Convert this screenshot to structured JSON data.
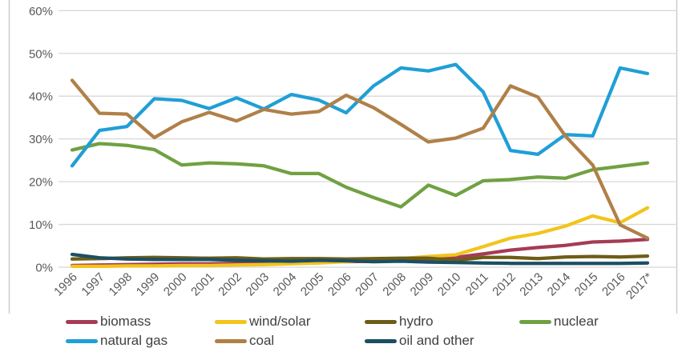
{
  "chart_data": {
    "type": "line",
    "title": "",
    "xlabel": "",
    "ylabel": "",
    "grid": true,
    "legend_position": "bottom",
    "x_categories": [
      "1996",
      "1997",
      "1998",
      "1999",
      "2000",
      "2001",
      "2002",
      "2003",
      "2004",
      "2005",
      "2006",
      "2007",
      "2008",
      "2009",
      "2010",
      "2011",
      "2012",
      "2013",
      "2014",
      "2015",
      "2016",
      "2017*"
    ],
    "y_axis": {
      "min": 0,
      "max": 60,
      "unit": "%",
      "ticks": [
        {
          "value": 0,
          "label": "0%"
        },
        {
          "value": 10,
          "label": "10%"
        },
        {
          "value": 20,
          "label": "20%"
        },
        {
          "value": 30,
          "label": "30%"
        },
        {
          "value": 40,
          "label": "40%"
        },
        {
          "value": 50,
          "label": "50%"
        },
        {
          "value": 60,
          "label": "60%"
        }
      ]
    },
    "series": [
      {
        "id": "biomass",
        "name": "biomass",
        "color": "#a53b55",
        "values": [
          0.4,
          0.5,
          0.6,
          0.7,
          0.8,
          0.8,
          0.9,
          1.0,
          1.1,
          1.2,
          1.3,
          1.4,
          1.6,
          1.8,
          2.3,
          3.1,
          4.0,
          4.6,
          5.1,
          5.9,
          6.1,
          6.5
        ]
      },
      {
        "id": "wind-solar",
        "name": "wind/solar",
        "color": "#f2c41d",
        "values": [
          0.2,
          0.2,
          0.3,
          0.3,
          0.4,
          0.4,
          0.5,
          0.6,
          0.8,
          1.0,
          1.3,
          1.6,
          2.0,
          2.5,
          2.9,
          4.8,
          6.8,
          7.9,
          9.6,
          12.0,
          10.4,
          13.9
        ]
      },
      {
        "id": "hydro",
        "name": "hydro",
        "color": "#6d5e17",
        "values": [
          1.9,
          2.0,
          2.2,
          2.3,
          2.2,
          2.1,
          2.2,
          1.9,
          2.0,
          2.0,
          1.9,
          2.0,
          2.1,
          2.1,
          1.6,
          2.3,
          2.3,
          2.0,
          2.4,
          2.5,
          2.4,
          2.6
        ]
      },
      {
        "id": "nuclear",
        "name": "nuclear",
        "color": "#70a142",
        "values": [
          27.4,
          28.9,
          28.5,
          27.5,
          23.9,
          24.4,
          24.2,
          23.7,
          21.9,
          21.9,
          18.7,
          16.3,
          14.1,
          19.2,
          16.8,
          20.2,
          20.5,
          21.1,
          20.8,
          22.8,
          23.6,
          24.4
        ]
      },
      {
        "id": "natural-gas",
        "name": "natural gas",
        "color": "#209fd6",
        "values": [
          23.7,
          32.0,
          32.9,
          39.4,
          39.0,
          37.1,
          39.6,
          37.0,
          40.4,
          39.1,
          36.1,
          42.4,
          46.6,
          45.9,
          47.4,
          41.0,
          27.3,
          26.4,
          31.0,
          30.7,
          46.6,
          45.3
        ]
      },
      {
        "id": "coal",
        "name": "coal",
        "color": "#b08048",
        "values": [
          43.7,
          36.0,
          35.8,
          30.3,
          34.0,
          36.2,
          34.2,
          36.9,
          35.8,
          36.4,
          40.2,
          37.3,
          33.4,
          29.3,
          30.2,
          32.5,
          42.4,
          39.8,
          30.7,
          23.9,
          9.9,
          6.8
        ]
      },
      {
        "id": "oil-other",
        "name": "oil and other",
        "color": "#1c4f63",
        "values": [
          3.0,
          2.2,
          1.9,
          1.8,
          1.8,
          1.8,
          1.6,
          1.5,
          1.4,
          1.6,
          1.5,
          1.3,
          1.4,
          1.2,
          1.1,
          1.0,
          0.9,
          0.9,
          0.9,
          0.9,
          0.9,
          1.0
        ]
      }
    ]
  }
}
